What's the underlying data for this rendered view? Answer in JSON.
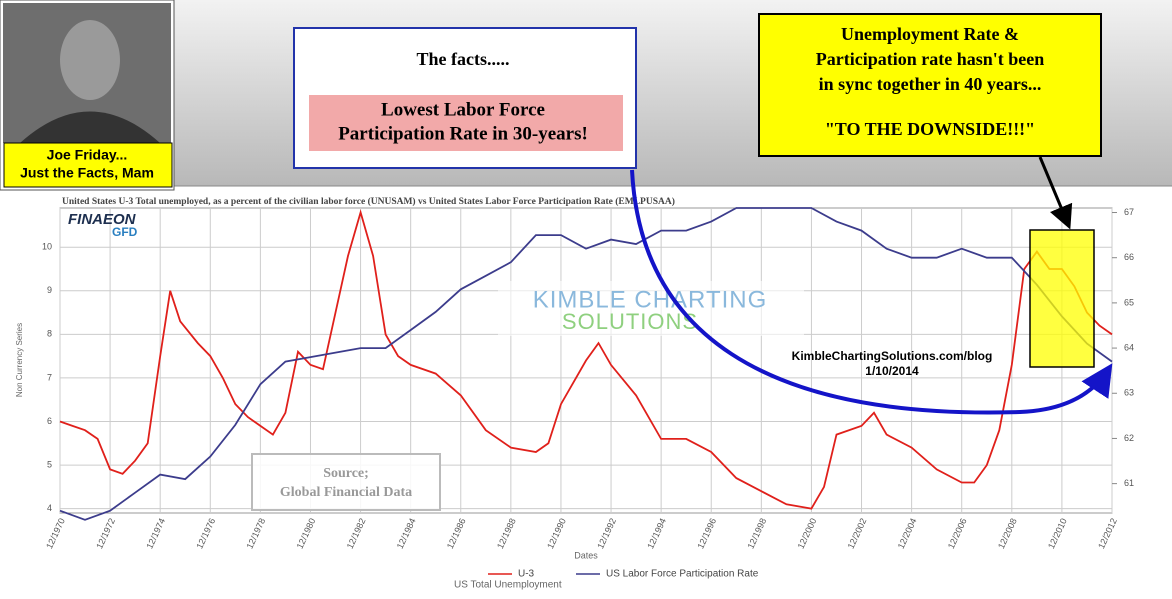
{
  "callouts": {
    "photo_caption": [
      "Joe Friday...",
      "Just the Facts, Mam"
    ],
    "facts_heading": "The facts.....",
    "facts_highlight": [
      "Lowest Labor Force",
      "Participation Rate in 30-years!"
    ],
    "sync_note": [
      "Unemployment Rate &",
      "Participation rate hasn't been",
      "in sync together in 40 years...",
      "\"TO THE DOWNSIDE!!!\""
    ]
  },
  "chart_data": {
    "type": "line",
    "title": "United States U-3 Total unemployed, as a percent of the civilian labor force (UNUSAM)  vs  United States Labor Force Participation Rate (EMLPUSAA)",
    "y_label": "Non Currency Series",
    "x_label": "Dates",
    "legend_title": "US Total Unemployment",
    "annotations": {
      "logo": "FINAEON",
      "logo_sub": "GFD",
      "watermark": [
        "KIMBLE CHARTING",
        "SOLUTIONS"
      ],
      "blog": [
        "KimbleChartingSolutions.com/blog",
        "1/10/2014"
      ],
      "source": [
        "Source;",
        "Global Financial Data"
      ]
    },
    "xlim": [
      1971,
      2013
    ],
    "xticks": [
      {
        "value": 1971,
        "label": "12/1970"
      },
      {
        "value": 1973,
        "label": "12/1972"
      },
      {
        "value": 1975,
        "label": "12/1974"
      },
      {
        "value": 1977,
        "label": "12/1976"
      },
      {
        "value": 1979,
        "label": "12/1978"
      },
      {
        "value": 1981,
        "label": "12/1980"
      },
      {
        "value": 1983,
        "label": "12/1982"
      },
      {
        "value": 1985,
        "label": "12/1984"
      },
      {
        "value": 1987,
        "label": "12/1986"
      },
      {
        "value": 1989,
        "label": "12/1988"
      },
      {
        "value": 1991,
        "label": "12/1990"
      },
      {
        "value": 1993,
        "label": "12/1992"
      },
      {
        "value": 1995,
        "label": "12/1994"
      },
      {
        "value": 1997,
        "label": "12/1996"
      },
      {
        "value": 1999,
        "label": "12/1998"
      },
      {
        "value": 2001,
        "label": "12/2000"
      },
      {
        "value": 2003,
        "label": "12/2002"
      },
      {
        "value": 2005,
        "label": "12/2004"
      },
      {
        "value": 2007,
        "label": "12/2006"
      },
      {
        "value": 2009,
        "label": "12/2008"
      },
      {
        "value": 2011,
        "label": "12/2010"
      },
      {
        "value": 2013,
        "label": "12/2012"
      }
    ],
    "ylim": [
      3.9,
      10.9
    ],
    "yticks": [
      4,
      5,
      6,
      7,
      8,
      9,
      10
    ],
    "y2lim": [
      60.35,
      67.1
    ],
    "y2ticks": [
      61,
      62,
      63,
      64,
      65,
      66,
      67
    ],
    "grid": true,
    "series": [
      {
        "name": "U-3",
        "color": "#e0201b",
        "x": [
          1971,
          1971.5,
          1972,
          1972.5,
          1973,
          1973.5,
          1974,
          1974.5,
          1975,
          1975.4,
          1975.8,
          1976.5,
          1977,
          1977.5,
          1978,
          1978.5,
          1979,
          1979.5,
          1980,
          1980.5,
          1981,
          1981.5,
          1982,
          1982.5,
          1983,
          1983.5,
          1984,
          1984.5,
          1985,
          1986,
          1987,
          1988,
          1989,
          1990,
          1990.5,
          1991,
          1992,
          1992.5,
          1993,
          1994,
          1995,
          1996,
          1997,
          1998,
          1999,
          2000,
          2001,
          2001.5,
          2002,
          2003,
          2003.5,
          2004,
          2005,
          2006,
          2007,
          2007.5,
          2008,
          2008.5,
          2009,
          2009.5,
          2010,
          2010.5,
          2011,
          2011.5,
          2012,
          2012.5,
          2013
        ],
        "values": [
          6.0,
          5.9,
          5.8,
          5.6,
          4.9,
          4.8,
          5.1,
          5.5,
          7.5,
          9.0,
          8.3,
          7.8,
          7.5,
          7.0,
          6.4,
          6.1,
          5.9,
          5.7,
          6.2,
          7.6,
          7.3,
          7.2,
          8.5,
          9.8,
          10.8,
          9.8,
          8.0,
          7.5,
          7.3,
          7.1,
          6.6,
          5.8,
          5.4,
          5.3,
          5.5,
          6.4,
          7.4,
          7.8,
          7.3,
          6.6,
          5.6,
          5.6,
          5.3,
          4.7,
          4.4,
          4.1,
          4.0,
          4.5,
          5.7,
          5.9,
          6.2,
          5.7,
          5.4,
          4.9,
          4.6,
          4.6,
          5.0,
          5.8,
          7.3,
          9.5,
          9.9,
          9.5,
          9.5,
          9.1,
          8.5,
          8.2,
          8.0
        ]
      },
      {
        "name": "US Labor Force Participation Rate",
        "color": "#3c3c8c",
        "axis": "y2",
        "x": [
          1971,
          1972,
          1973,
          1974,
          1975,
          1976,
          1977,
          1978,
          1979,
          1980,
          1981,
          1982,
          1983,
          1984,
          1985,
          1986,
          1987,
          1988,
          1989,
          1990,
          1991,
          1992,
          1993,
          1994,
          1995,
          1996,
          1997,
          1998,
          1999,
          2000,
          2001,
          2002,
          2003,
          2004,
          2005,
          2006,
          2007,
          2008,
          2009,
          2010,
          2011,
          2012,
          2013
        ],
        "values": [
          60.4,
          60.2,
          60.4,
          60.8,
          61.2,
          61.1,
          61.6,
          62.3,
          63.2,
          63.7,
          63.8,
          63.9,
          64.0,
          64.0,
          64.4,
          64.8,
          65.3,
          65.6,
          65.9,
          66.5,
          66.5,
          66.2,
          66.4,
          66.3,
          66.6,
          66.6,
          66.8,
          67.1,
          67.1,
          67.1,
          67.1,
          66.8,
          66.6,
          66.2,
          66.0,
          66.0,
          66.2,
          66.0,
          66.0,
          65.4,
          64.7,
          64.1,
          63.7
        ]
      }
    ]
  }
}
